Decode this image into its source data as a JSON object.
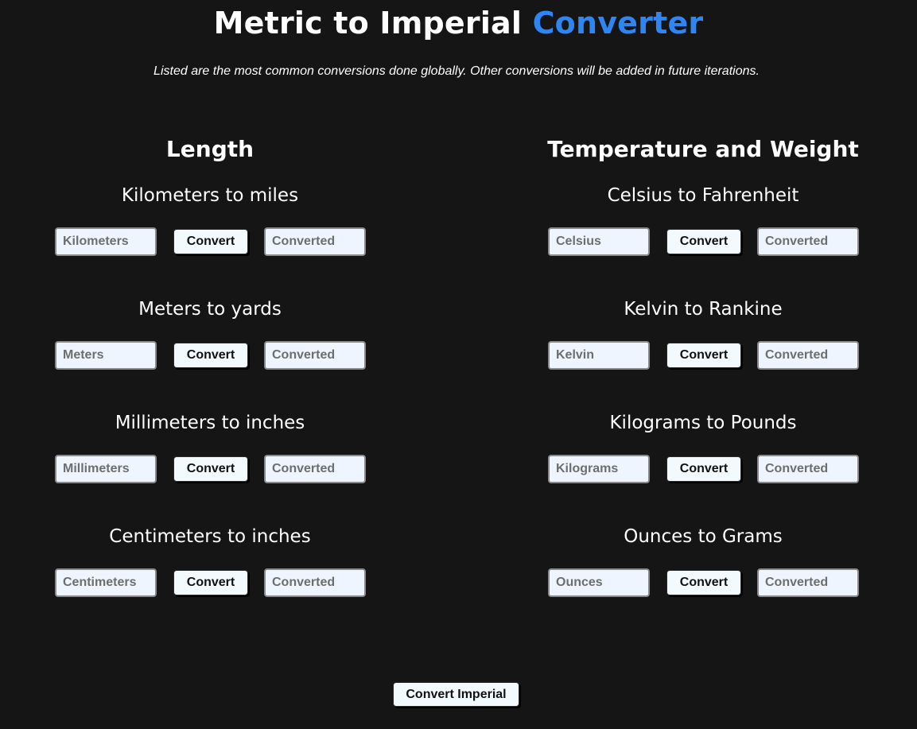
{
  "header": {
    "title_main": "Metric to Imperial",
    "title_accent": "Converter",
    "subtitle": "Listed are the most common conversions done globally. Other conversions will be added in future iterations."
  },
  "colors": {
    "background": "#151515",
    "accent": "#2e86f5",
    "input_bg": "#eef5fe",
    "button_bg": "#f3fafe"
  },
  "length": {
    "heading": "Length",
    "sections": [
      {
        "title": "Kilometers to miles",
        "input_placeholder": "Kilometers",
        "button_label": "Convert",
        "output_placeholder": "Converted"
      },
      {
        "title": "Meters to yards",
        "input_placeholder": "Meters",
        "button_label": "Convert",
        "output_placeholder": "Converted"
      },
      {
        "title": "Millimeters to inches",
        "input_placeholder": "Millimeters",
        "button_label": "Convert",
        "output_placeholder": "Converted"
      },
      {
        "title": "Centimeters to inches",
        "input_placeholder": "Centimeters",
        "button_label": "Convert",
        "output_placeholder": "Converted"
      }
    ]
  },
  "temp_weight": {
    "heading": "Temperature and Weight",
    "sections": [
      {
        "title": "Celsius to Fahrenheit",
        "input_placeholder": "Celsius",
        "button_label": "Convert",
        "output_placeholder": "Converted"
      },
      {
        "title": "Kelvin to Rankine",
        "input_placeholder": "Kelvin",
        "button_label": "Convert",
        "output_placeholder": "Converted"
      },
      {
        "title": "Kilograms to Pounds",
        "input_placeholder": "Kilograms",
        "button_label": "Convert",
        "output_placeholder": "Converted"
      },
      {
        "title": "Ounces to Grams",
        "input_placeholder": "Ounces",
        "button_label": "Convert",
        "output_placeholder": "Converted"
      }
    ]
  },
  "footer": {
    "main_button_label": "Convert Imperial"
  }
}
